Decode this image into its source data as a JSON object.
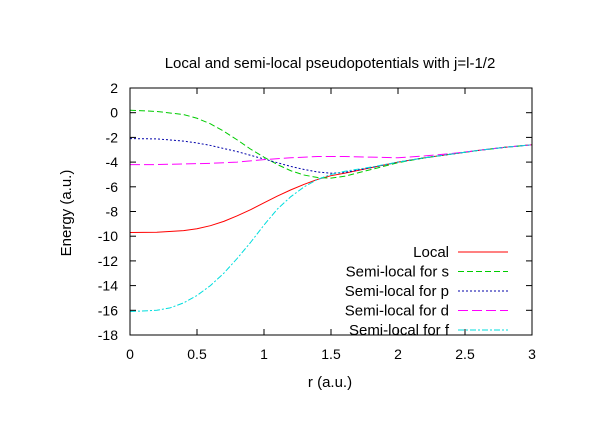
{
  "chart_data": {
    "type": "line",
    "title": "Local and semi-local pseudopotentials with j=l-1/2",
    "xlabel": "r (a.u.)",
    "ylabel": "Energy (a.u.)",
    "xlim": [
      0,
      3
    ],
    "ylim": [
      -18,
      2
    ],
    "xticks": [
      0,
      0.5,
      1,
      1.5,
      2,
      2.5,
      3
    ],
    "xtick_labels": [
      "0",
      "0.5",
      "1",
      "1.5",
      "2",
      "2.5",
      "3"
    ],
    "yticks": [
      -18,
      -16,
      -14,
      -12,
      -10,
      -8,
      -6,
      -4,
      -2,
      0,
      2
    ],
    "ytick_labels": [
      "-18",
      "-16",
      "-14",
      "-12",
      "-10",
      "-8",
      "-6",
      "-4",
      "-2",
      "0",
      "2"
    ],
    "grid": false,
    "legend_position": "bottom-right",
    "series": [
      {
        "name": "Local",
        "color": "#ff0000",
        "dash": "",
        "x": [
          0,
          0.2,
          0.4,
          0.5,
          0.6,
          0.7,
          0.8,
          0.9,
          1.0,
          1.1,
          1.2,
          1.3,
          1.4,
          1.5,
          1.6,
          1.8,
          2.0,
          2.2,
          2.4,
          2.6,
          2.8,
          3.0
        ],
        "y": [
          -9.7,
          -9.68,
          -9.55,
          -9.4,
          -9.15,
          -8.8,
          -8.35,
          -7.85,
          -7.3,
          -6.75,
          -6.25,
          -5.8,
          -5.4,
          -5.1,
          -4.9,
          -4.45,
          -4.0,
          -3.65,
          -3.35,
          -3.05,
          -2.8,
          -2.6
        ]
      },
      {
        "name": "Semi-local for s",
        "color": "#00cc00",
        "dash": "6,3",
        "x": [
          0,
          0.2,
          0.4,
          0.5,
          0.6,
          0.7,
          0.8,
          0.9,
          1.0,
          1.1,
          1.2,
          1.3,
          1.4,
          1.5,
          1.6,
          1.8,
          2.0,
          2.2,
          2.4,
          2.6,
          2.8,
          3.0
        ],
        "y": [
          0.2,
          0.1,
          -0.15,
          -0.45,
          -0.9,
          -1.5,
          -2.2,
          -2.95,
          -3.6,
          -4.2,
          -4.7,
          -5.05,
          -5.25,
          -5.3,
          -5.15,
          -4.6,
          -4.05,
          -3.65,
          -3.35,
          -3.05,
          -2.8,
          -2.6
        ]
      },
      {
        "name": "Semi-local for p",
        "color": "#0000aa",
        "dash": "2,2",
        "x": [
          0,
          0.2,
          0.4,
          0.5,
          0.6,
          0.7,
          0.8,
          0.9,
          1.0,
          1.1,
          1.2,
          1.3,
          1.4,
          1.5,
          1.6,
          1.8,
          2.0,
          2.2,
          2.4,
          2.6,
          2.8,
          3.0
        ],
        "y": [
          -2.1,
          -2.12,
          -2.3,
          -2.45,
          -2.65,
          -2.9,
          -3.15,
          -3.45,
          -3.75,
          -4.05,
          -4.35,
          -4.6,
          -4.8,
          -4.9,
          -4.85,
          -4.45,
          -4.0,
          -3.65,
          -3.35,
          -3.05,
          -2.8,
          -2.6
        ]
      },
      {
        "name": "Semi-local for d",
        "color": "#ff00ff",
        "dash": "10,4",
        "x": [
          0,
          0.2,
          0.4,
          0.6,
          0.8,
          1.0,
          1.2,
          1.4,
          1.6,
          1.8,
          2.0,
          2.2,
          2.4,
          2.6,
          2.8,
          3.0
        ],
        "y": [
          -4.2,
          -4.2,
          -4.15,
          -4.1,
          -4.0,
          -3.8,
          -3.65,
          -3.55,
          -3.55,
          -3.6,
          -3.65,
          -3.5,
          -3.3,
          -3.05,
          -2.8,
          -2.6
        ]
      },
      {
        "name": "Semi-local for f",
        "color": "#00dddd",
        "dash": "6,2,2,2",
        "x": [
          0,
          0.2,
          0.3,
          0.4,
          0.5,
          0.6,
          0.7,
          0.8,
          0.9,
          1.0,
          1.1,
          1.2,
          1.3,
          1.4,
          1.5,
          1.6,
          1.8,
          2.0,
          2.2,
          2.4,
          2.6,
          2.8,
          3.0
        ],
        "y": [
          -16.1,
          -16.0,
          -15.8,
          -15.4,
          -14.8,
          -14.0,
          -13.0,
          -11.8,
          -10.5,
          -9.1,
          -7.8,
          -6.8,
          -6.0,
          -5.4,
          -5.0,
          -4.75,
          -4.4,
          -4.0,
          -3.65,
          -3.35,
          -3.05,
          -2.8,
          -2.6
        ]
      }
    ]
  }
}
